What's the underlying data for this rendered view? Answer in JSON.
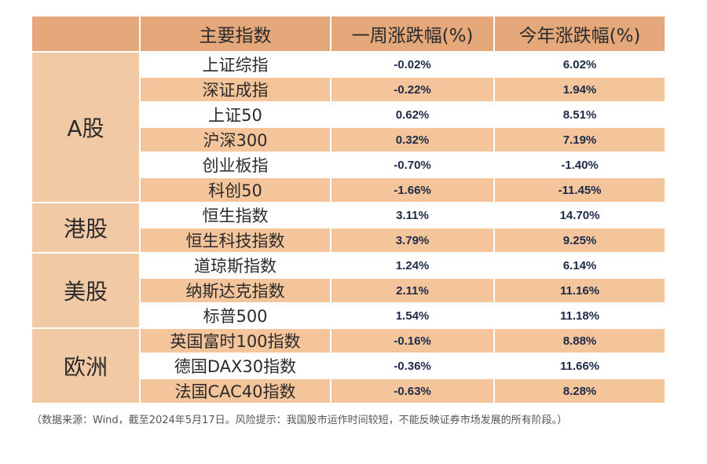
{
  "header": {
    "col_index": "主要指数",
    "col_week": "一周涨跌幅(%)",
    "col_ytd": "今年涨跌幅(%)"
  },
  "groups": [
    {
      "label": "A股",
      "rows": [
        {
          "name": "上证综指",
          "week": "-0.02%",
          "ytd": "6.02%"
        },
        {
          "name": "深证成指",
          "week": "-0.22%",
          "ytd": "1.94%"
        },
        {
          "name": "上证50",
          "week": "0.62%",
          "ytd": "8.51%"
        },
        {
          "name": "沪深300",
          "week": "0.32%",
          "ytd": "7.19%"
        },
        {
          "name": "创业板指",
          "week": "-0.70%",
          "ytd": "-1.40%"
        },
        {
          "name": "科创50",
          "week": "-1.66%",
          "ytd": "-11.45%"
        }
      ]
    },
    {
      "label": "港股",
      "rows": [
        {
          "name": "恒生指数",
          "week": "3.11%",
          "ytd": "14.70%"
        },
        {
          "name": "恒生科技指数",
          "week": "3.79%",
          "ytd": "9.25%"
        }
      ]
    },
    {
      "label": "美股",
      "rows": [
        {
          "name": "道琼斯指数",
          "week": "1.24%",
          "ytd": "6.14%"
        },
        {
          "name": "纳斯达克指数",
          "week": "2.11%",
          "ytd": "11.16%"
        },
        {
          "name": "标普500",
          "week": "1.54%",
          "ytd": "11.18%"
        }
      ]
    },
    {
      "label": "欧洲",
      "rows": [
        {
          "name": "英国富时100指数",
          "week": "-0.16%",
          "ytd": "8.88%"
        },
        {
          "name": "德国DAX30指数",
          "week": "-0.36%",
          "ytd": "11.66%"
        },
        {
          "name": "法国CAC40指数",
          "week": "-0.63%",
          "ytd": "8.28%"
        }
      ]
    }
  ],
  "footnote": "（数据来源：Wind，截至2024年5月17日。风险提示：我国股市运作时间较短，不能反映证券市场发展的所有阶段。）"
}
